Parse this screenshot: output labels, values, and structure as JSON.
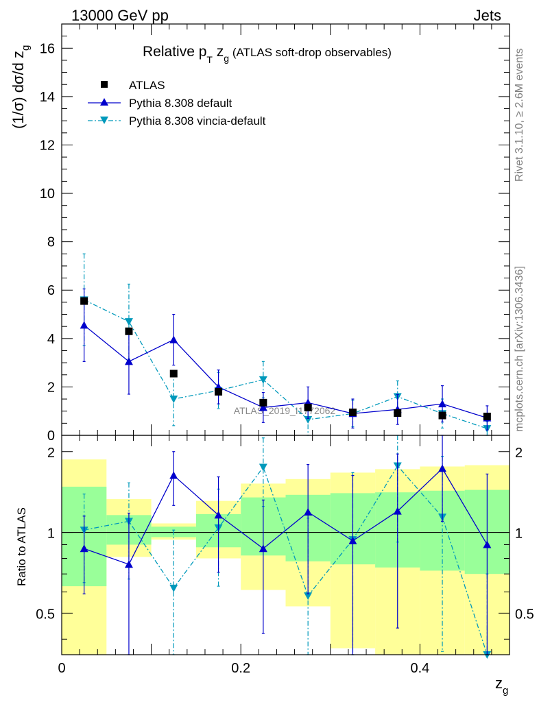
{
  "header": {
    "left": "13000 GeV pp",
    "right": "Jets"
  },
  "side": {
    "version": "Rivet 3.1.10, ≥ 2.6M events",
    "source": "mcplots.cern.ch [arXiv:1306.3436]"
  },
  "colors": {
    "atlas": "#000000",
    "pythia_default": "#0000cc",
    "pythia_vincia": "#0099bb",
    "band_1sigma": "#99ff99",
    "band_2sigma": "#ffff99",
    "watermark": "#888888"
  },
  "chart_data": [
    {
      "type": "scatter",
      "panel": "main",
      "title_parts": {
        "pre": "Relative p",
        "sub": "T",
        "mid": " z",
        "sub2": "g",
        "post": " (ATLAS soft-drop observables)"
      },
      "ylabel_parts": {
        "main": "(1/σ) dσ/d z",
        "sub": "g"
      },
      "watermark": "ATLAS_2019_I1772062",
      "xlim": [
        0,
        0.5
      ],
      "ylim": [
        0,
        17
      ],
      "y_ticks": [
        0,
        2,
        4,
        6,
        8,
        10,
        12,
        14,
        16
      ],
      "legend_position": "top-left",
      "x": [
        0.025,
        0.075,
        0.125,
        0.175,
        0.225,
        0.275,
        0.325,
        0.375,
        0.425,
        0.475
      ],
      "series": [
        {
          "name": "ATLAS",
          "style": "marker-square",
          "values": [
            5.55,
            4.3,
            2.55,
            1.8,
            1.35,
            1.15,
            0.95,
            0.92,
            0.82,
            0.78
          ],
          "err": [
            0.15,
            0.12,
            0.1,
            0.08,
            0.07,
            0.06,
            0.05,
            0.05,
            0.05,
            0.05
          ]
        },
        {
          "name": "Pythia 8.308 default",
          "style": "solid-triangle-up",
          "values": [
            4.55,
            3.05,
            3.95,
            2.0,
            1.15,
            1.35,
            0.9,
            1.07,
            1.3,
            0.72
          ],
          "err": [
            1.5,
            1.35,
            1.05,
            0.7,
            0.62,
            0.65,
            0.6,
            0.62,
            0.75,
            0.5
          ]
        },
        {
          "name": "Pythia 8.308 vincia-default",
          "style": "dashdot-triangle-down",
          "values": [
            5.6,
            4.7,
            1.5,
            1.85,
            2.3,
            0.65,
            0.9,
            1.6,
            0.9,
            0.28
          ],
          "err": [
            1.9,
            1.55,
            1.1,
            0.75,
            0.75,
            0.65,
            0.55,
            0.65,
            0.6,
            0.28
          ]
        }
      ]
    },
    {
      "type": "scatter",
      "panel": "ratio",
      "ylabel": "Ratio to ATLAS",
      "xlabel_parts": {
        "main": "z",
        "sub": "g"
      },
      "xlim": [
        0,
        0.5
      ],
      "ylim": [
        0.35,
        2.3
      ],
      "y_ticks": [
        0.5,
        1,
        2
      ],
      "x_ticks": [
        0,
        0.2,
        0.4
      ],
      "x": [
        0.025,
        0.075,
        0.125,
        0.175,
        0.225,
        0.275,
        0.325,
        0.375,
        0.425,
        0.475
      ],
      "band_edges": [
        0.0,
        0.05,
        0.1,
        0.15,
        0.2,
        0.25,
        0.3,
        0.35,
        0.4,
        0.45,
        0.5
      ],
      "band_1sigma": [
        [
          0.63,
          1.48
        ],
        [
          0.9,
          1.16
        ],
        [
          0.96,
          1.05
        ],
        [
          0.88,
          1.17
        ],
        [
          0.82,
          1.35
        ],
        [
          0.78,
          1.38
        ],
        [
          0.76,
          1.4
        ],
        [
          0.74,
          1.41
        ],
        [
          0.72,
          1.43
        ],
        [
          0.7,
          1.44
        ]
      ],
      "band_2sigma": [
        [
          0.35,
          1.87
        ],
        [
          0.81,
          1.33
        ],
        [
          0.94,
          1.08
        ],
        [
          0.8,
          1.31
        ],
        [
          0.61,
          1.52
        ],
        [
          0.53,
          1.58
        ],
        [
          0.37,
          1.67
        ],
        [
          0.35,
          1.72
        ],
        [
          0.35,
          1.76
        ],
        [
          0.35,
          1.78
        ]
      ],
      "series": [
        {
          "name": "Pythia 8.308 default",
          "style": "solid-triangle-up",
          "values": [
            0.87,
            0.76,
            1.63,
            1.16,
            0.87,
            1.19,
            0.93,
            1.2,
            1.73,
            0.9
          ],
          "err": [
            0.28,
            0.42,
            0.37,
            0.45,
            0.45,
            0.6,
            0.7,
            0.76,
            0.63,
            0.75
          ]
        },
        {
          "name": "Pythia 8.308 vincia-default",
          "style": "dashdot-triangle-down",
          "values": [
            1.02,
            1.1,
            0.62,
            1.04,
            1.75,
            0.58,
            0.94,
            1.77,
            1.14,
            0.35
          ],
          "err": [
            0.37,
            0.43,
            0.4,
            0.41,
            0.5,
            0.55,
            0.73,
            0.85,
            0.78,
            0.35
          ]
        }
      ]
    }
  ]
}
